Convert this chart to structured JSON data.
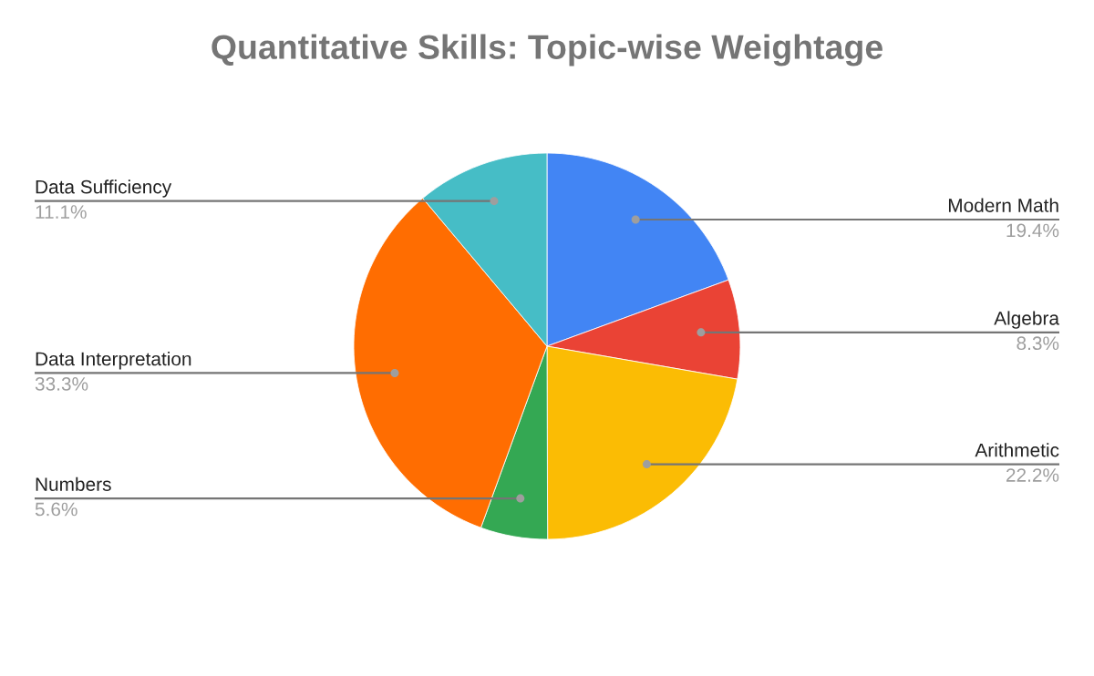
{
  "chart_data": {
    "type": "pie",
    "title": "Quantitative Skills: Topic-wise Weightage",
    "categories": [
      "Modern Math",
      "Algebra",
      "Arithmetic",
      "Numbers",
      "Data Interpretation",
      "Data Sufficiency"
    ],
    "values": [
      19.4,
      8.3,
      22.2,
      5.6,
      33.3,
      11.1
    ],
    "colors": [
      "#4285f4",
      "#ea4335",
      "#fbbc04",
      "#34a853",
      "#ff6d01",
      "#46bdc6"
    ],
    "value_labels": [
      "19.4%",
      "8.3%",
      "22.2%",
      "5.6%",
      "33.3%",
      "11.1%"
    ]
  }
}
